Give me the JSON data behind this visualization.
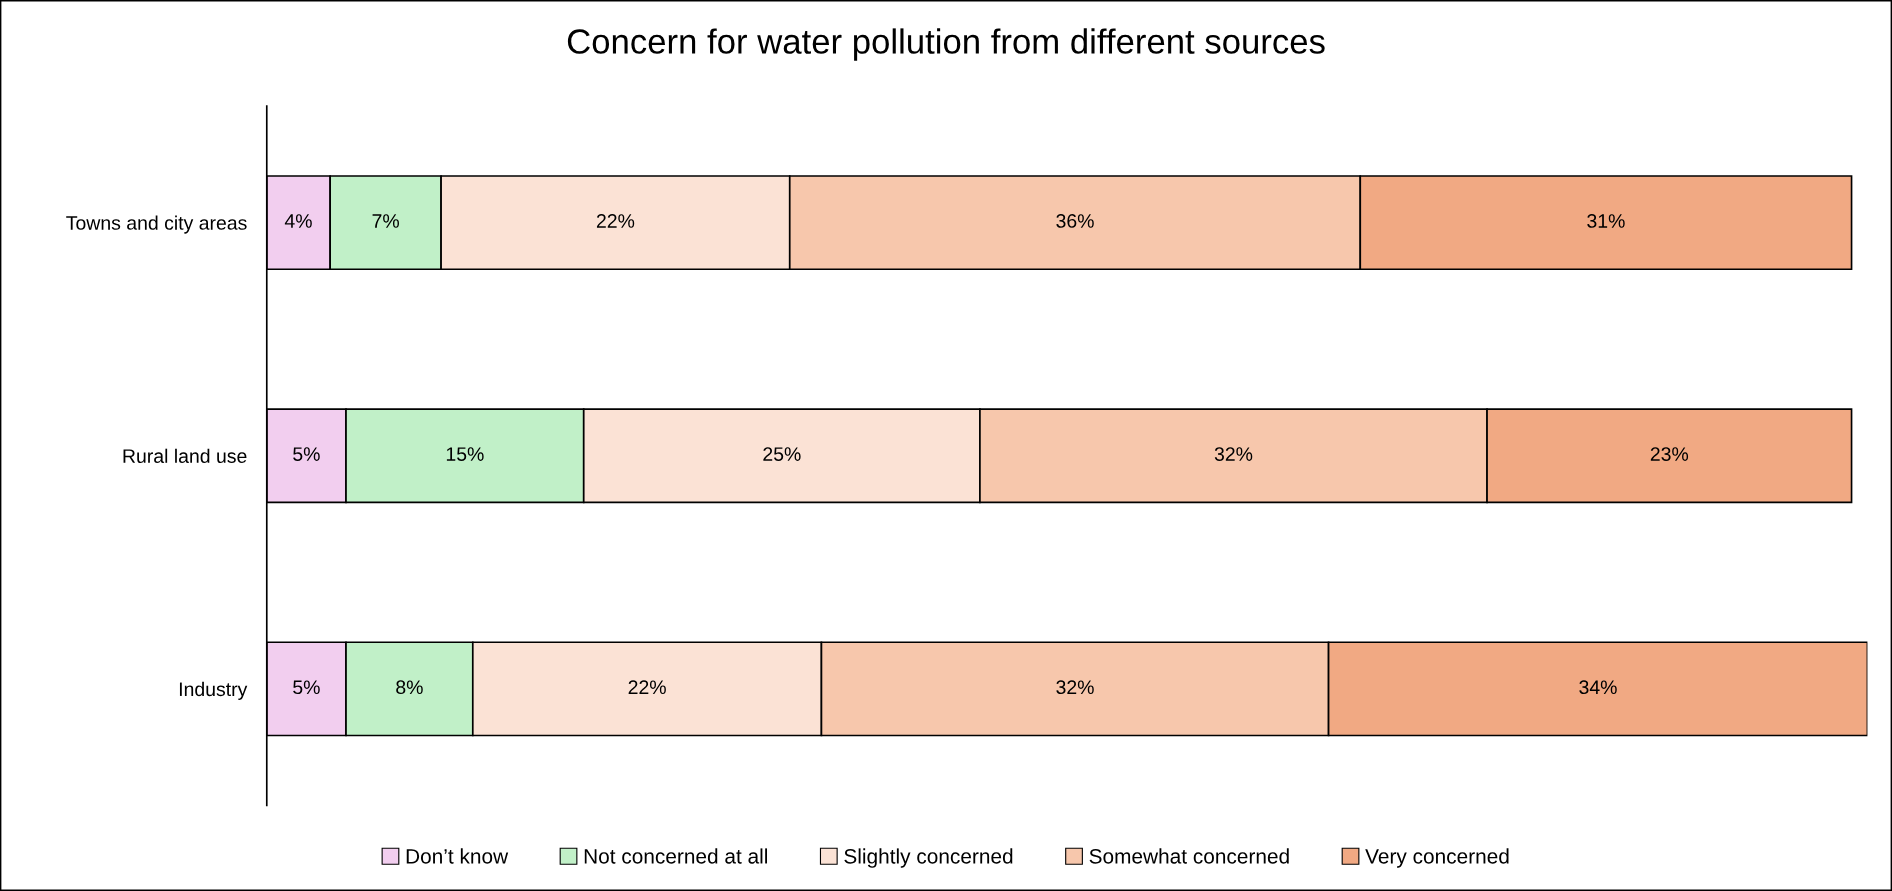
{
  "chart_data": {
    "type": "bar",
    "orientation": "horizontal",
    "stacked": true,
    "title": "Concern for water pollution from different sources",
    "categories": [
      "Towns and city areas",
      "Rural land use",
      "Industry"
    ],
    "series": [
      {
        "name": "Don’t know",
        "color": "#f2ceef",
        "values": [
          4,
          5,
          5
        ],
        "value_labels": [
          "4%",
          "5%",
          "5%"
        ]
      },
      {
        "name": "Not concerned at all",
        "color": "#c1f0c8",
        "values": [
          7,
          15,
          8
        ],
        "value_labels": [
          "7%",
          "15%",
          "8%"
        ]
      },
      {
        "name": "Slightly concerned",
        "color": "#fbe2d5",
        "values": [
          22,
          25,
          22
        ],
        "value_labels": [
          "22%",
          "25%",
          "22%"
        ]
      },
      {
        "name": "Somewhat concerned",
        "color": "#f7c7ac",
        "values": [
          36,
          32,
          32
        ],
        "value_labels": [
          "36%",
          "32%",
          "32%"
        ]
      },
      {
        "name": "Very concerned",
        "color": "#f1a983",
        "values": [
          31,
          23,
          34
        ],
        "value_labels": [
          "31%",
          "23%",
          "34%"
        ]
      }
    ],
    "legend": "bottom",
    "grid": false
  }
}
